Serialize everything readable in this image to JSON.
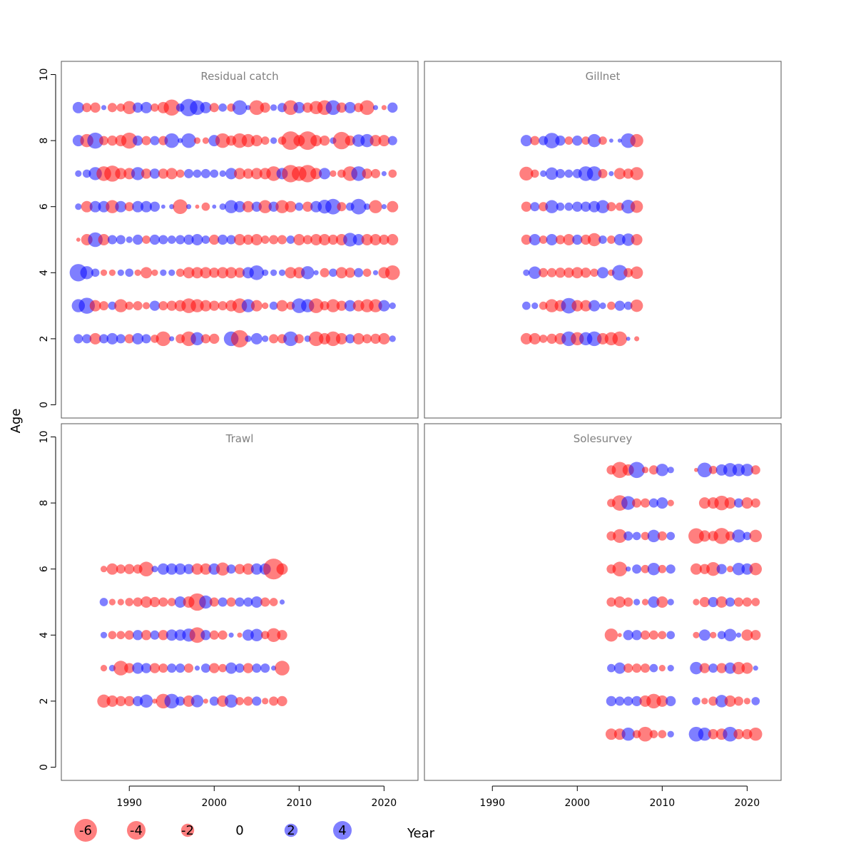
{
  "colors": {
    "negative": "#ff0000",
    "positive": "#0000ff",
    "frame": "#555555",
    "title": "#808080"
  },
  "chart_data": {
    "type": "scatter",
    "subtype": "bubble",
    "xlabel": "Year",
    "ylabel": "Age",
    "xlim": [
      1982,
      2024
    ],
    "ylim": [
      -0.4,
      10.4
    ],
    "xticks": [
      1990,
      2000,
      2010,
      2020
    ],
    "yticks": [
      0,
      2,
      4,
      6,
      8,
      10
    ],
    "bubble_value_scale": "residual",
    "legend": {
      "values": [
        -6,
        -4,
        -2,
        0,
        2,
        4
      ],
      "labels": [
        "-6",
        "-4",
        "-2",
        "0",
        "2",
        "4"
      ],
      "placement": "bottom"
    },
    "panels": [
      {
        "title": "Residual catch",
        "years": [
          1984,
          1985,
          1986,
          1987,
          1988,
          1989,
          1990,
          1991,
          1992,
          1993,
          1994,
          1995,
          1996,
          1997,
          1998,
          1999,
          2000,
          2001,
          2002,
          2003,
          2004,
          2005,
          2006,
          2007,
          2008,
          2009,
          2010,
          2011,
          2012,
          2013,
          2014,
          2015,
          2016,
          2017,
          2018,
          2019,
          2020,
          2021
        ],
        "ages": [
          2,
          3,
          4,
          5,
          6,
          7,
          8,
          9
        ],
        "residuals": {
          "2": [
            1,
            1,
            -1.5,
            1,
            1.5,
            1,
            -1,
            1.5,
            1,
            -0.8,
            -2.5,
            0.3,
            -1,
            -2.5,
            2,
            -1,
            -1.2,
            0,
            2.5,
            -3.5,
            0.5,
            1.5,
            0.5,
            -1,
            -1,
            2.5,
            -1,
            0.5,
            -2.5,
            -1.5,
            -2.5,
            -1.5,
            1,
            -1.5,
            -1,
            -1.2,
            -1.5,
            0.5
          ],
          "3": [
            2,
            3,
            -1.5,
            -1,
            0.8,
            -2,
            -0.8,
            -1,
            -0.6,
            1.2,
            -1,
            -1.2,
            -1.5,
            -2.5,
            -2,
            -1.5,
            -1.2,
            -1,
            -1.5,
            -2.5,
            2,
            -1.5,
            -0.5,
            0.8,
            -1.5,
            -0.8,
            2.5,
            2,
            -2.5,
            -1,
            -2,
            -1.2,
            1.5,
            -1.5,
            -2,
            -2,
            1.5,
            0.5
          ],
          "4": [
            3.5,
            2,
            0.8,
            -0.5,
            -0.5,
            0.5,
            0.8,
            -0.5,
            -1.5,
            -0.5,
            0.5,
            0.5,
            -0.8,
            -1.5,
            -1.5,
            -1.5,
            -1.2,
            -1.5,
            -1.5,
            -1.2,
            1.5,
            2.5,
            0.5,
            0.5,
            0.5,
            -1.5,
            -1.5,
            2,
            0.3,
            -1,
            0.8,
            -1.5,
            -1.2,
            1,
            -0.8,
            0.3,
            -1.5,
            -2.5
          ],
          "5": [
            -0.2,
            -1.5,
            2.5,
            -1.5,
            1,
            1,
            0.5,
            1.2,
            -0.8,
            1.2,
            1,
            0.8,
            1,
            1.2,
            1.5,
            0.8,
            -1.2,
            1.2,
            1,
            -1.5,
            -1.2,
            -1.5,
            -0.8,
            -1,
            -1,
            0.8,
            -1.5,
            -1,
            -1.5,
            -1.5,
            -1.2,
            -1.5,
            2.2,
            1.5,
            -1.5,
            -1.5,
            -1.2,
            -1.5
          ],
          "6": [
            0.5,
            -1.5,
            1.5,
            1.5,
            -2,
            1.5,
            -1,
            1.5,
            1.5,
            1.2,
            0.2,
            0.3,
            -2.5,
            0.3,
            -0.2,
            -0.8,
            0.2,
            0.5,
            2,
            1.5,
            -1.5,
            1.2,
            -2,
            1.2,
            -2,
            -1.5,
            0.8,
            -1.2,
            1.5,
            2.2,
            2.8,
            -1,
            0.8,
            2.8,
            0.5,
            -2,
            0.3,
            -1.5
          ],
          "7": [
            0.5,
            0.8,
            2,
            -2.5,
            -3,
            -1.5,
            -1.5,
            2,
            -1.2,
            1.2,
            -1.2,
            -1.5,
            -0.8,
            1,
            0.8,
            1,
            0.8,
            0.5,
            1.5,
            -1.5,
            -1.2,
            -1.5,
            -1.5,
            -2.5,
            1.5,
            -3.5,
            -2.5,
            -3.5,
            -1.5,
            1.5,
            -0.5,
            -0.8,
            -2.5,
            2.5,
            -1.2,
            -1,
            0.3,
            -0.8
          ],
          "8": [
            1.5,
            -2,
            3,
            -1,
            -1.2,
            -1.5,
            -3,
            1.2,
            -1,
            1,
            -1,
            2.5,
            0.3,
            2.5,
            -0.5,
            -0.5,
            1.5,
            -2.5,
            -1.2,
            -2.5,
            -2,
            -1.5,
            -0.8,
            0.5,
            -0.8,
            -4,
            -1.5,
            -4,
            -1.5,
            -1.2,
            0.5,
            -3.5,
            -1.2,
            1.8,
            2,
            -1.5,
            -1.5,
            1
          ],
          "9": [
            1.5,
            -1,
            -1.2,
            0.3,
            -1,
            -0.8,
            -2,
            1.2,
            1.5,
            -0.8,
            -1.5,
            -3,
            0.8,
            3.5,
            2.5,
            1.5,
            -1,
            0.8,
            -0.8,
            2.5,
            0.3,
            -2.5,
            -1.2,
            0.5,
            1,
            -2.5,
            1.5,
            -1.2,
            -2,
            -2.5,
            2.5,
            -1.2,
            1.5,
            -1,
            -2.5,
            0.3,
            -0.3,
            1.2
          ]
        }
      },
      {
        "title": "Gillnet",
        "years": [
          1994,
          1995,
          1996,
          1997,
          1998,
          1999,
          2000,
          2001,
          2002,
          2003,
          2004,
          2005,
          2006,
          2007
        ],
        "ages": [
          2,
          3,
          4,
          5,
          6,
          7,
          8
        ],
        "residuals": {
          "2": [
            -1.5,
            -1.5,
            -0.8,
            -1.2,
            -1.5,
            2.5,
            -2,
            2,
            2.5,
            -1.5,
            -2,
            -2.5,
            0.2,
            -0.3
          ],
          "3": [
            0.8,
            0.5,
            -0.8,
            -2,
            -1.5,
            2.8,
            -1.5,
            -1.5,
            1.5,
            0.5,
            -0.8,
            1.2,
            0.8,
            -1.8
          ],
          "4": [
            0.5,
            1.8,
            -1,
            -1,
            -1.2,
            -1.2,
            -1.5,
            -1.2,
            -0.8,
            1.5,
            -0.5,
            2.8,
            -1,
            -1.8
          ],
          "5": [
            -1.2,
            1.5,
            -0.8,
            1.5,
            -1,
            -1.5,
            1.2,
            -1.2,
            -2,
            0.8,
            -0.8,
            1.5,
            1.8,
            -1.5
          ],
          "6": [
            -1.2,
            1,
            -1,
            2,
            0.8,
            0.8,
            1.2,
            1.2,
            1.5,
            2,
            -1,
            -0.8,
            2.2,
            -1.8
          ],
          "7": [
            -2.2,
            -0.8,
            0.5,
            1.8,
            1,
            0.8,
            1,
            2.5,
            2.5,
            -1,
            0.3,
            -1.5,
            -1.2,
            -2
          ],
          "8": [
            1.5,
            -1,
            1,
            2.8,
            1.2,
            -0.8,
            1.2,
            -0.8,
            2,
            -0.8,
            0.2,
            0.2,
            2.5,
            -2
          ]
        }
      },
      {
        "title": "Trawl",
        "years": [
          1987,
          1988,
          1989,
          1990,
          1991,
          1992,
          1993,
          1994,
          1995,
          1996,
          1997,
          1998,
          1999,
          2000,
          2001,
          2002,
          2003,
          2004,
          2005,
          2006,
          2007,
          2008
        ],
        "ages": [
          2,
          3,
          4,
          5,
          6
        ],
        "residuals": {
          "2": [
            -2,
            -1.5,
            -1.2,
            -1.2,
            1.2,
            2,
            -0.3,
            -2.5,
            2.5,
            1,
            -1.5,
            1.8,
            -0.3,
            1,
            -1.5,
            2,
            -0.8,
            -1,
            1,
            -0.5,
            -1,
            -1.2
          ],
          "3": [
            -0.5,
            0.5,
            -2.5,
            -1.2,
            1.5,
            1.2,
            -1.2,
            -1,
            1,
            1,
            -1,
            0.3,
            1,
            -1.2,
            -0.8,
            1.5,
            1,
            -1.2,
            1,
            1,
            0.3,
            -2.5
          ],
          "4": [
            0.5,
            -0.8,
            -0.8,
            -1,
            1.2,
            -1.2,
            1,
            -1.2,
            1.5,
            1.5,
            2,
            -2.8,
            1.2,
            -1,
            -1,
            0.3,
            -0.3,
            1.5,
            1.8,
            -0.8,
            -2.2,
            -1.2
          ],
          "5": [
            0.8,
            -0.5,
            -0.5,
            -0.8,
            -1,
            -1.5,
            -1.2,
            -1,
            -0.8,
            1.5,
            -1.5,
            -3.5,
            2,
            -1,
            1,
            -1,
            1,
            1,
            1.5,
            -1,
            -0.8,
            0.3
          ],
          "6": [
            -0.5,
            -1.5,
            -1,
            -1.2,
            -1,
            -2.5,
            0.5,
            1.5,
            1.5,
            1.5,
            1.2,
            -1.5,
            -1.5,
            1.5,
            -2,
            1,
            -1.2,
            -1.5,
            1.5,
            1.5,
            -5,
            -1.5
          ]
        }
      },
      {
        "title": "Solesurvey",
        "years": [
          2004,
          2005,
          2006,
          2007,
          2008,
          2009,
          2010,
          2011,
          2014,
          2015,
          2016,
          2017,
          2018,
          2019,
          2020,
          2021
        ],
        "ages": [
          1,
          2,
          3,
          4,
          5,
          6,
          7,
          8,
          9
        ],
        "residuals": {
          "1": [
            -1.5,
            -1.5,
            2,
            -0.8,
            -2.5,
            -0.8,
            -0.8,
            0.5,
            2.5,
            2,
            -1.2,
            -1.5,
            2.5,
            -1.2,
            -1.2,
            -2
          ],
          "2": [
            1.2,
            1,
            1,
            1.2,
            -1.5,
            -2.5,
            -1.5,
            1.2,
            0.8,
            -0.5,
            -1,
            1.8,
            -1.5,
            -1,
            -0.5,
            0.8
          ],
          "3": [
            0.8,
            1.5,
            -1,
            -1,
            -1,
            0.8,
            -0.5,
            0.5,
            1.8,
            -1.2,
            1,
            -1.2,
            1.5,
            -1.8,
            -1.5,
            0.3
          ],
          "4": [
            -2,
            -0.2,
            1.2,
            1.2,
            -1,
            -1,
            -0.8,
            0.8,
            -0.5,
            1.5,
            -0.5,
            0.8,
            1.8,
            0.3,
            -1.5,
            -1.2
          ],
          "5": [
            -1,
            -1.5,
            -1,
            0.5,
            -0.5,
            1.5,
            -1.5,
            0.5,
            -0.5,
            -1.2,
            1.2,
            -1.5,
            1,
            -1,
            -1,
            -0.8
          ],
          "6": [
            -1,
            -2.5,
            0.3,
            1,
            -0.8,
            1.8,
            -0.8,
            1,
            -1.5,
            -1.2,
            -2.2,
            1.2,
            -0.5,
            1.8,
            1.5,
            -1.8
          ],
          "7": [
            -1,
            -2.2,
            1,
            0.8,
            -0.8,
            1.8,
            -1,
            0.8,
            -2.8,
            -1.5,
            -1.2,
            -3,
            -1,
            2,
            0.8,
            -1.8
          ],
          "8": [
            -0.8,
            -2.8,
            2.2,
            -1,
            -1,
            1,
            1.5,
            -0.5,
            0,
            -1.5,
            -1.5,
            -2.5,
            -1.5,
            1,
            -1.5,
            -1
          ],
          "9": [
            -1,
            -3,
            -1.5,
            3,
            -0.5,
            -1,
            1.8,
            0.5,
            -0.2,
            2.5,
            -0.8,
            1.5,
            2.2,
            1.8,
            1.8,
            -1
          ]
        }
      }
    ]
  }
}
